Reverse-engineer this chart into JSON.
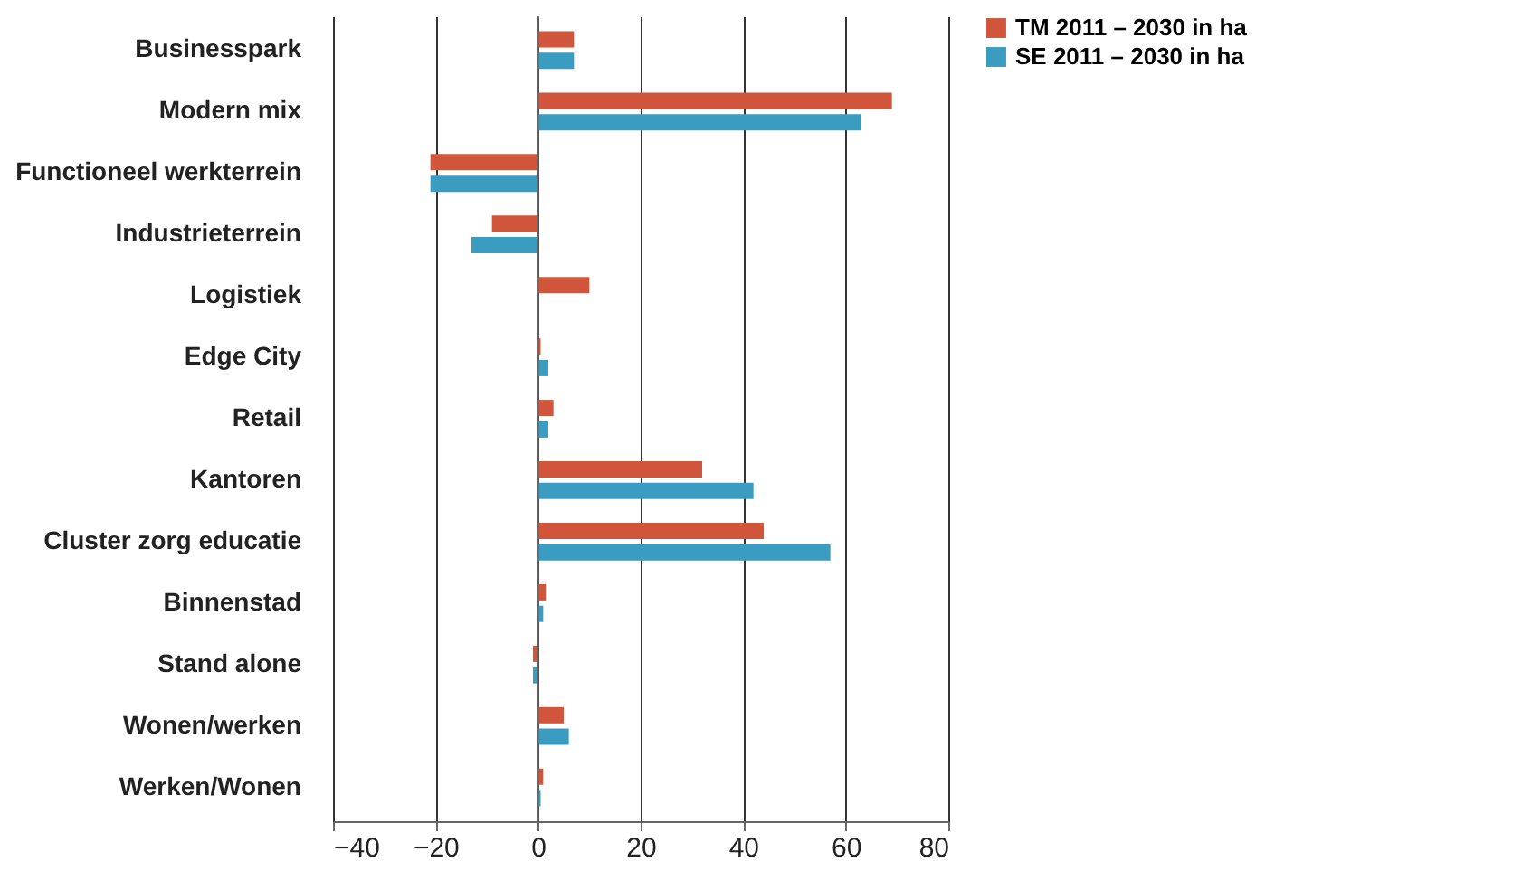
{
  "chart_data": {
    "type": "bar",
    "orientation": "horizontal",
    "categories": [
      "Businesspark",
      "Modern mix",
      "Functioneel werkterrein",
      "Industrieterrein",
      "Logistiek",
      "Edge City",
      "Retail",
      "Kantoren",
      "Cluster zorg educatie",
      "Binnenstad",
      "Stand alone",
      "Wonen/werken",
      "Werken/Wonen"
    ],
    "series": [
      {
        "name": "TM 2011 – 2030 in ha",
        "color": "#d0553a",
        "values": [
          7,
          69,
          -21,
          -9,
          10,
          0.5,
          3,
          32,
          44,
          1.5,
          -1,
          5,
          1
        ]
      },
      {
        "name": "SE 2011 – 2030 in ha",
        "color": "#3a9cc0",
        "values": [
          7,
          63,
          -21,
          -13,
          0,
          2,
          2,
          42,
          57,
          1,
          -1,
          6,
          0.5
        ]
      }
    ],
    "xlim": [
      -40,
      80
    ],
    "xticks": [
      -40,
      -20,
      0,
      20,
      40,
      60,
      80
    ],
    "grid": "x",
    "legend": "right"
  }
}
